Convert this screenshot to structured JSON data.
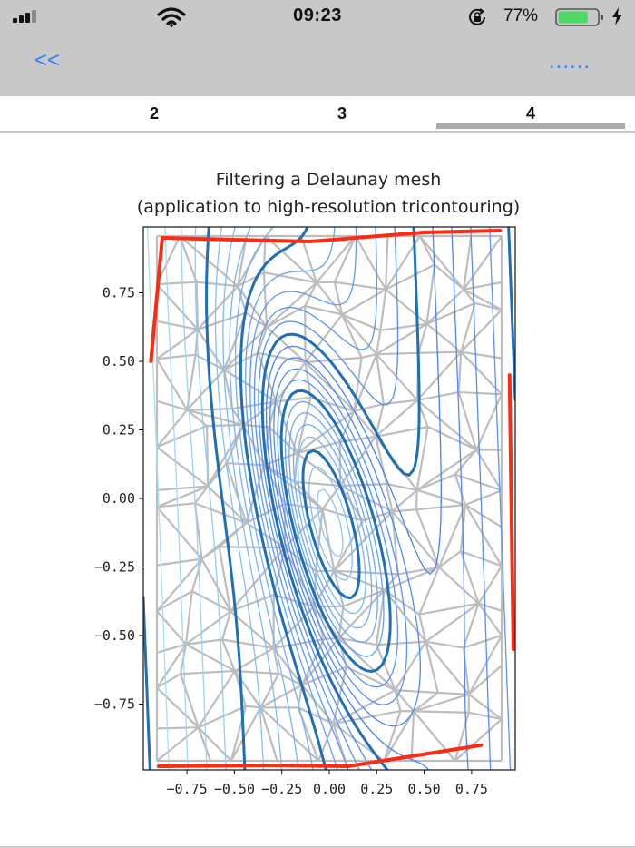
{
  "status_bar": {
    "time": "09:23",
    "battery_percent": "77%",
    "battery_level": 0.77,
    "icons": [
      "signal-icon",
      "wifi-icon",
      "rotation-lock-icon",
      "battery-icon",
      "charging-bolt-icon"
    ]
  },
  "nav": {
    "back_label": "<<",
    "more_label": "......"
  },
  "tabs": {
    "items": [
      "2",
      "3",
      "4"
    ],
    "selected": "4"
  },
  "colors": {
    "bars_bg": "#c8c8c8",
    "link_blue": "#2f80ff",
    "mesh_gray": "#bdbdbd",
    "contour_blue": "#1f6fb4",
    "boundary_red": "#ff2a12"
  },
  "chart_data": {
    "type": "contour",
    "title": "Filtering a Delaunay mesh",
    "subtitle": "(application to high-resolution tricontouring)",
    "xlabel": "",
    "ylabel": "",
    "xlim": [
      -0.98,
      0.98
    ],
    "ylim": [
      -0.99,
      0.99
    ],
    "xticks": [
      -0.75,
      -0.5,
      -0.25,
      0.0,
      0.25,
      0.5,
      0.75
    ],
    "xtick_labels": [
      "−0.75",
      "−0.50",
      "−0.25",
      "0.00",
      "0.25",
      "0.50",
      "0.75"
    ],
    "yticks": [
      0.75,
      0.5,
      0.25,
      0.0,
      -0.25,
      -0.5,
      -0.75
    ],
    "ytick_labels": [
      "0.75",
      "0.50",
      "0.25",
      "0.00",
      "−0.25",
      "−0.50",
      "−0.75"
    ],
    "grid": false,
    "legend": "none"
  }
}
